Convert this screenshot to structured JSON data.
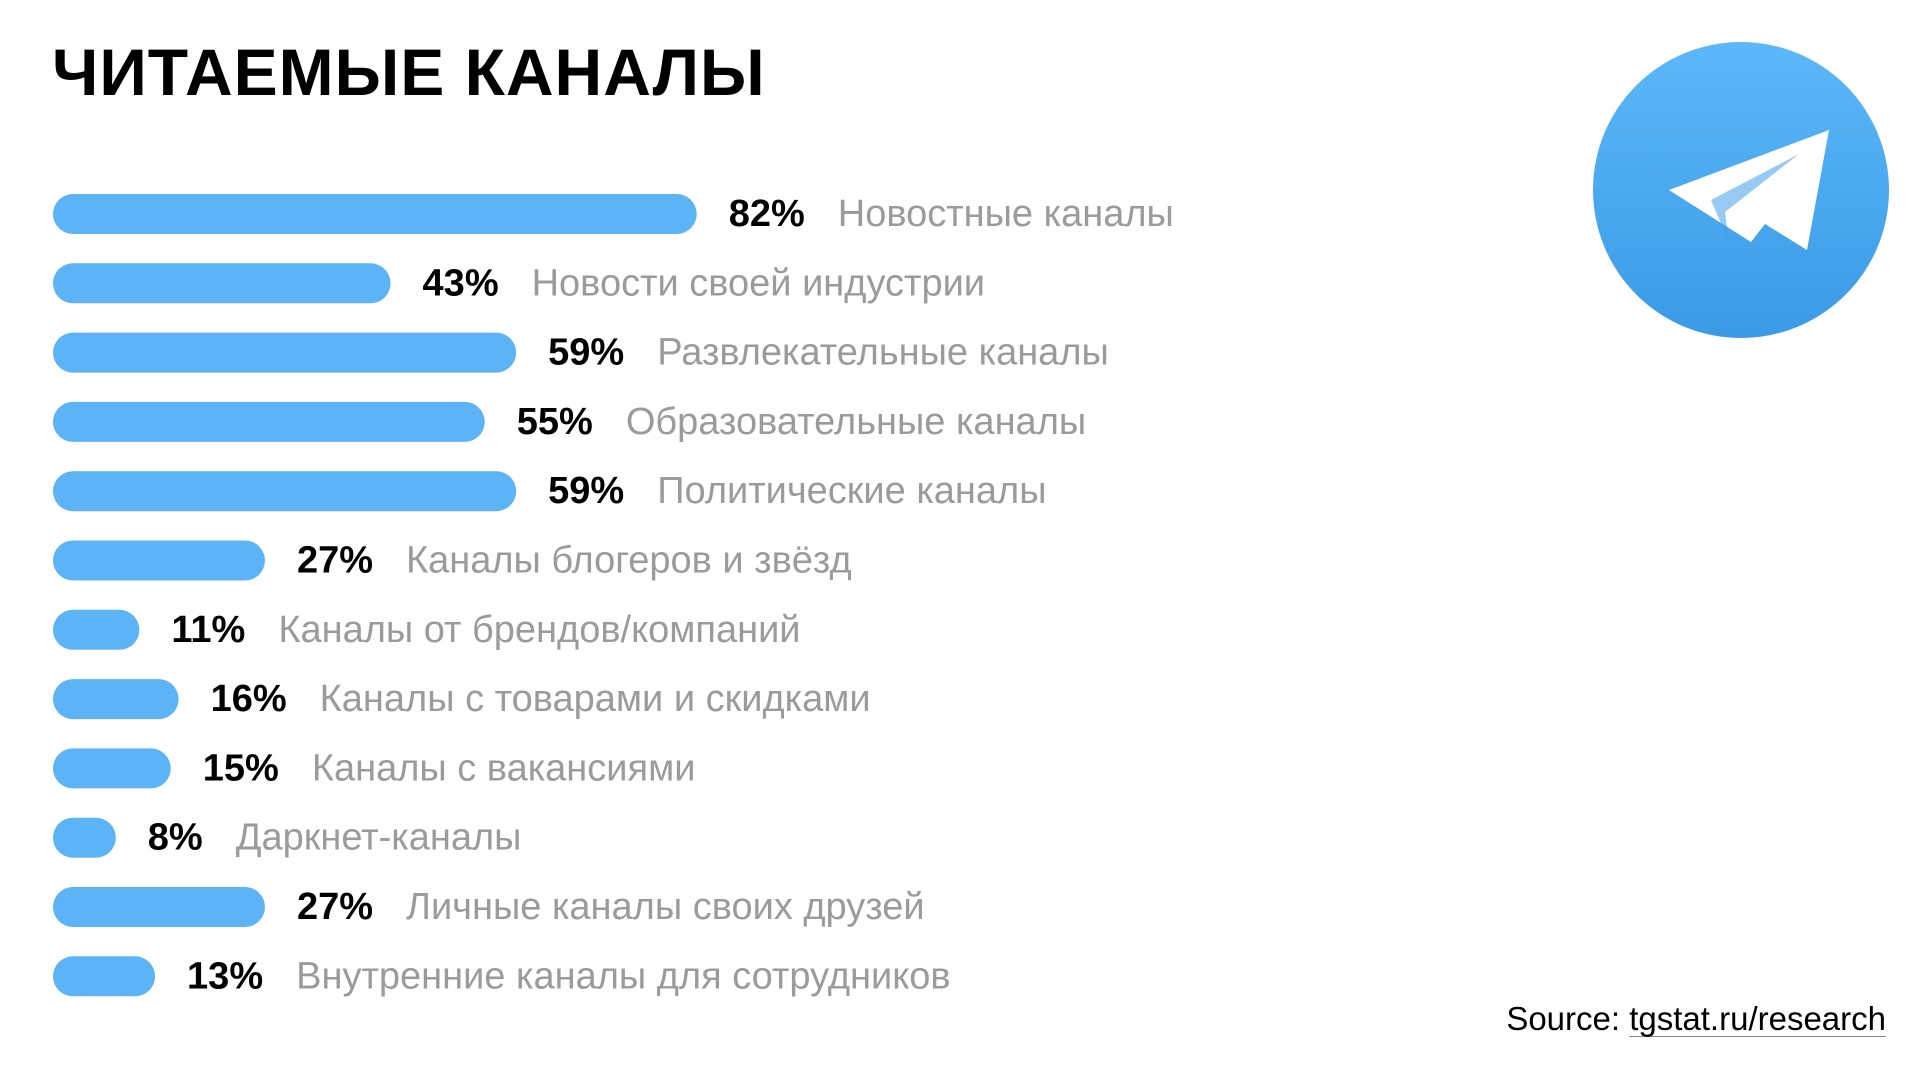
{
  "title": "ЧИТАЕМЫЕ КАНАЛЫ",
  "source": {
    "label": "Source:",
    "link": "tgstat.ru/research"
  },
  "logo": {
    "icon": "telegram-paper-plane-icon",
    "colors": [
      "#5cb8f8",
      "#3a9ae6"
    ]
  },
  "colors": {
    "bar": "#5cb3f5",
    "value_text": "#000000",
    "category_text": "#9b9b9b"
  },
  "chart_data": {
    "type": "bar",
    "orientation": "horizontal",
    "title": "ЧИТАЕМЫЕ КАНАЛЫ",
    "categories": [
      "Новостные каналы",
      "Новости своей индустрии",
      "Развлекательные каналы",
      "Образовательные каналы",
      "Политические каналы",
      "Каналы блогеров и звёзд",
      "Каналы от брендов/компаний",
      "Каналы с товарами и скидками",
      "Каналы с вакансиями",
      "Даркнет-каналы",
      "Личные каналы своих друзей",
      "Внутренние каналы для сотрудников"
    ],
    "values": [
      82,
      43,
      59,
      55,
      59,
      27,
      11,
      16,
      15,
      8,
      27,
      13
    ],
    "value_labels": [
      "82%",
      "43%",
      "59%",
      "55%",
      "59%",
      "27%",
      "11%",
      "16%",
      "15%",
      "8%",
      "27%",
      "13%"
    ],
    "unit": "%",
    "xlim": [
      0,
      100
    ],
    "grid": false,
    "legend": "none"
  }
}
